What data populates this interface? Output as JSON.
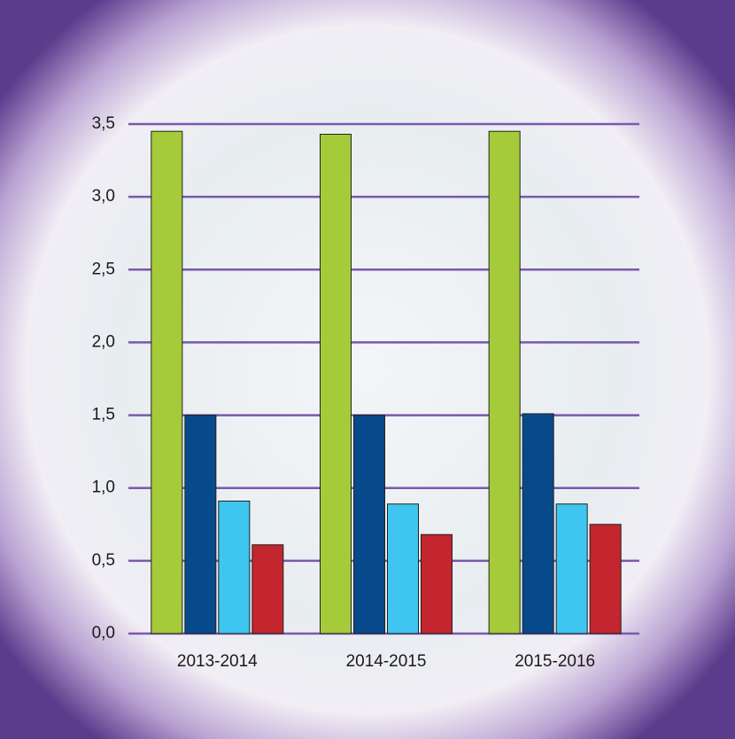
{
  "chart_data": {
    "type": "bar",
    "categories": [
      "2013-2014",
      "2014-2015",
      "2015-2016"
    ],
    "series": [
      {
        "color": "#a6cb3a",
        "values": [
          3.45,
          3.43,
          3.45
        ]
      },
      {
        "color": "#074a8b",
        "values": [
          1.5,
          1.5,
          1.51
        ]
      },
      {
        "color": "#3fc6f0",
        "values": [
          0.91,
          0.89,
          0.89
        ]
      },
      {
        "color": "#c3262f",
        "values": [
          0.61,
          0.68,
          0.75
        ]
      }
    ],
    "ylim": [
      0,
      3.5
    ],
    "yticks": [
      {
        "value": 0,
        "label": "0,0"
      },
      {
        "value": 0.5,
        "label": "0,5"
      },
      {
        "value": 1,
        "label": "1,0"
      },
      {
        "value": 1.5,
        "label": "1,5"
      },
      {
        "value": 2,
        "label": "2,0"
      },
      {
        "value": 2.5,
        "label": "2,5"
      },
      {
        "value": 3,
        "label": "3,0"
      },
      {
        "value": 3.5,
        "label": "3,5"
      }
    ],
    "grid": true
  }
}
